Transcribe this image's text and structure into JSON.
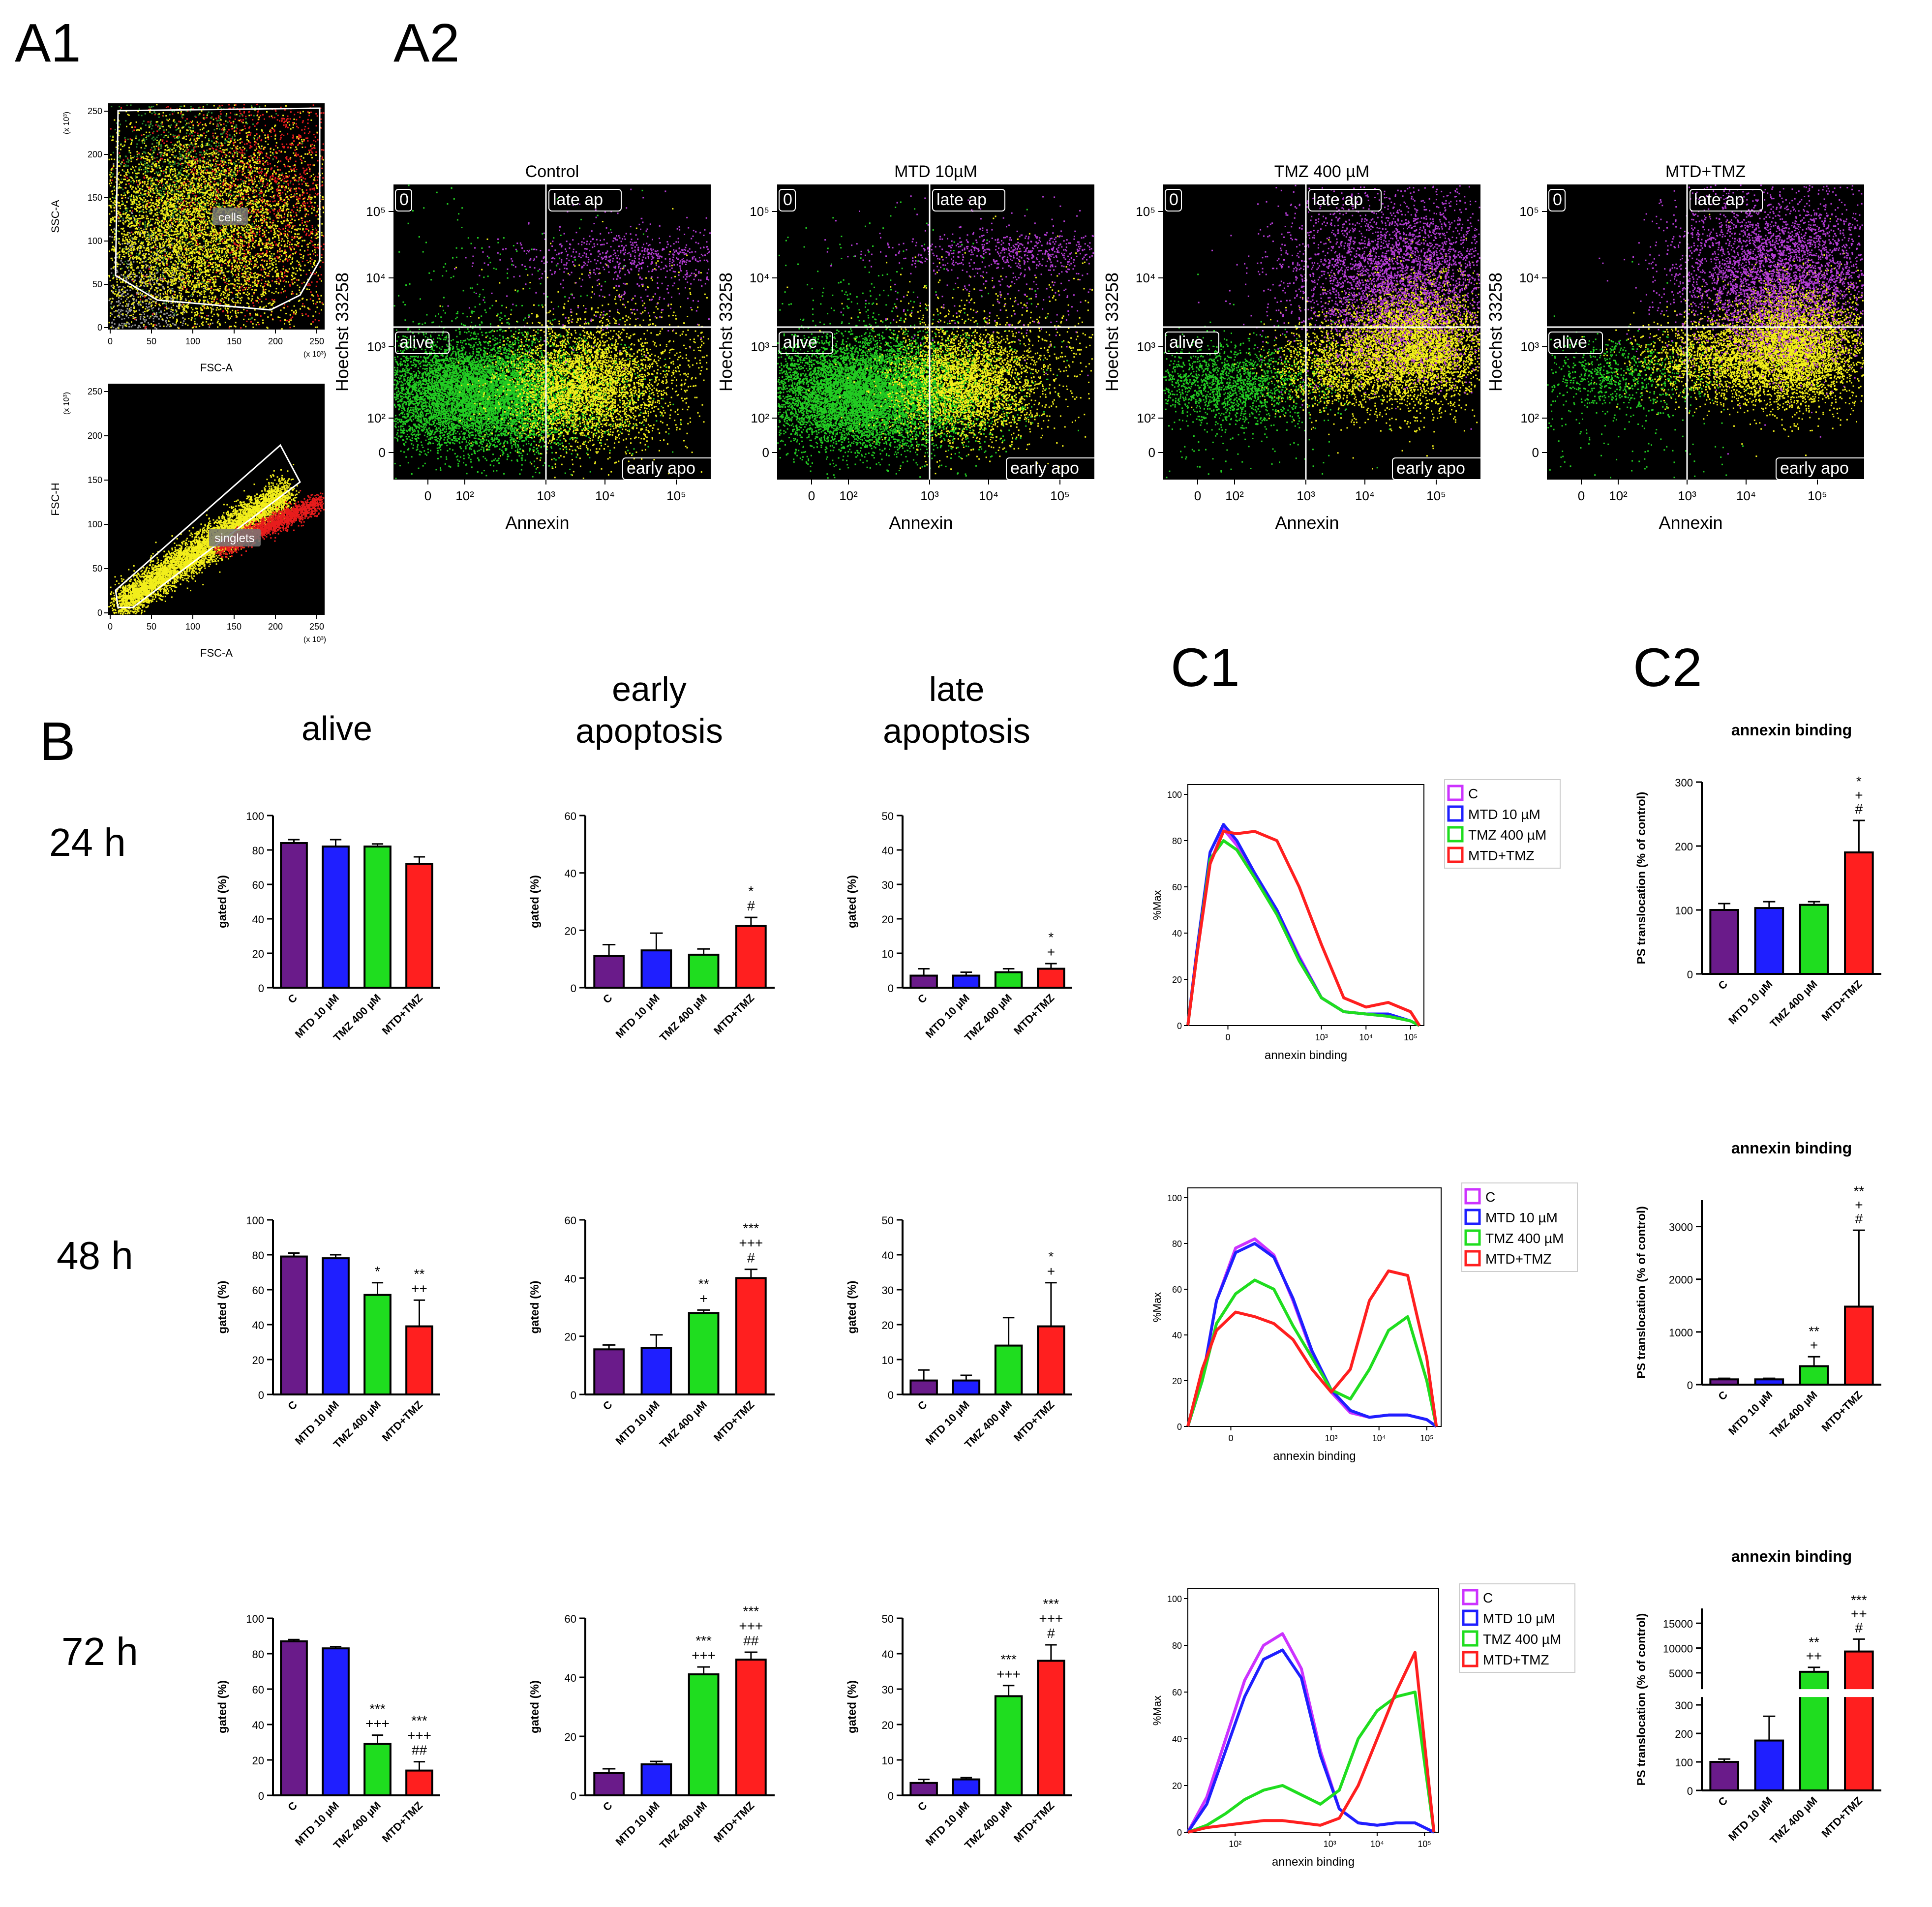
{
  "panel_labels": {
    "A1": "A1",
    "A2": "A2",
    "B": "B",
    "C1": "C1",
    "C2": "C2"
  },
  "row_labels": [
    "24 h",
    "48 h",
    "72 h"
  ],
  "group_labels": [
    "C",
    "MTD 10 µM",
    "TMZ 400 µM",
    "MTD+TMZ"
  ],
  "colors": {
    "C": "#6a1b8a",
    "MTD": "#1f1fff",
    "TMZ": "#1fdd1f",
    "COMBO": "#ff1f1f",
    "plotbg": "#000000",
    "gate": "#ffffff",
    "dot_green": "#22cc22",
    "dot_yellow": "#f2ee1a",
    "dot_purple": "#b53cd6",
    "dot_red": "#e81c1c"
  },
  "A1": {
    "top": {
      "x_label": "FSC-A",
      "y_label": "SSC-A",
      "x_unit": "(x 10³)",
      "y_unit": "(x 10³)",
      "gate_label": "cells",
      "x_ticks": [
        "0",
        "50",
        "100",
        "150",
        "200",
        "250"
      ],
      "y_ticks": [
        "0",
        "50",
        "100",
        "150",
        "200",
        "250"
      ]
    },
    "bottom": {
      "x_label": "FSC-A",
      "y_label": "FSC-H",
      "x_unit": "(x 10³)",
      "y_unit": "(x 10³)",
      "gate_label": "singlets",
      "x_ticks": [
        "0",
        "50",
        "100",
        "150",
        "200",
        "250"
      ],
      "y_ticks": [
        "0",
        "50",
        "100",
        "150",
        "200",
        "250"
      ]
    }
  },
  "A2": {
    "x_label": "Annexin",
    "y_label": "Hoechst 33258",
    "quadrants": {
      "top_left": "0",
      "top_right": "late ap",
      "bottom_left": "alive",
      "bottom_right": "early apo"
    },
    "x_ticks": [
      "0",
      "10²",
      "10³",
      "10⁴",
      "10⁵"
    ],
    "y_ticks": [
      "10⁵",
      "10⁴",
      "10³",
      "10²",
      "0"
    ],
    "plots": [
      {
        "title": "Control"
      },
      {
        "title": "MTD 10µM"
      },
      {
        "title": "TMZ 400 µM"
      },
      {
        "title": "MTD+TMZ"
      }
    ]
  },
  "B": {
    "column_titles": [
      [
        "alive"
      ],
      [
        "early",
        "apoptosis"
      ],
      [
        "late",
        "apoptosis"
      ]
    ],
    "y_label": "gated (%)"
  },
  "C1": {
    "x_label": "annexin binding",
    "y_label": "%Max",
    "y_ticks": [
      "0",
      "20",
      "40",
      "60",
      "80",
      "100"
    ],
    "x_ticks_rows": [
      [
        "0",
        "10³",
        "10⁴",
        "10⁵"
      ],
      [
        "0",
        "10³",
        "10⁴",
        "10⁵"
      ],
      [
        "10²",
        "10³",
        "10⁴",
        "10⁵"
      ]
    ],
    "legend": [
      "C",
      "MTD 10 µM",
      "TMZ 400 µM",
      "MTD+TMZ"
    ]
  },
  "C2": {
    "title": "annexin binding",
    "y_label": "PS translocation (% of control)"
  },
  "chart_data": [
    {
      "id": "B-24h-alive",
      "type": "bar",
      "categories": [
        "C",
        "MTD 10 µM",
        "TMZ 400 µM",
        "MTD+TMZ"
      ],
      "values": [
        84,
        82,
        82,
        72
      ],
      "errors": [
        2,
        4,
        1.5,
        4
      ],
      "ylim": [
        0,
        100
      ],
      "yticks": [
        0,
        20,
        40,
        60,
        80,
        100
      ],
      "ylabel": "gated (%)",
      "annotations": [
        [],
        [],
        [],
        []
      ]
    },
    {
      "id": "B-24h-early",
      "type": "bar",
      "categories": [
        "C",
        "MTD 10 µM",
        "TMZ 400 µM",
        "MTD+TMZ"
      ],
      "values": [
        11,
        13,
        11.5,
        21.5
      ],
      "errors": [
        4,
        6,
        2,
        3
      ],
      "ylim": [
        0,
        60
      ],
      "yticks": [
        0,
        20,
        40,
        60
      ],
      "ylabel": "gated (%)",
      "annotations": [
        [],
        [],
        [],
        [
          "*",
          "#"
        ]
      ]
    },
    {
      "id": "B-24h-late",
      "type": "bar",
      "categories": [
        "C",
        "MTD 10 µM",
        "TMZ 400 µM",
        "MTD+TMZ"
      ],
      "values": [
        3.5,
        3.5,
        4.5,
        5.5
      ],
      "errors": [
        2,
        1,
        1,
        1.5
      ],
      "ylim": [
        0,
        50
      ],
      "yticks": [
        0,
        10,
        20,
        30,
        40,
        50
      ],
      "ylabel": "gated (%)",
      "annotations": [
        [],
        [],
        [],
        [
          "*",
          "+"
        ]
      ]
    },
    {
      "id": "B-48h-alive",
      "type": "bar",
      "categories": [
        "C",
        "MTD 10 µM",
        "TMZ 400 µM",
        "MTD+TMZ"
      ],
      "values": [
        79,
        78,
        57,
        39
      ],
      "errors": [
        2,
        2,
        7,
        15
      ],
      "ylim": [
        0,
        100
      ],
      "yticks": [
        0,
        20,
        40,
        60,
        80,
        100
      ],
      "ylabel": "gated (%)",
      "annotations": [
        [],
        [],
        [
          "*"
        ],
        [
          "**",
          "++"
        ]
      ]
    },
    {
      "id": "B-48h-early",
      "type": "bar",
      "categories": [
        "C",
        "MTD 10 µM",
        "TMZ 400 µM",
        "MTD+TMZ"
      ],
      "values": [
        15.5,
        16,
        28,
        40
      ],
      "errors": [
        1.5,
        4.5,
        1,
        3
      ],
      "ylim": [
        0,
        60
      ],
      "yticks": [
        0,
        20,
        40,
        60
      ],
      "ylabel": "gated (%)",
      "annotations": [
        [],
        [],
        [
          "**",
          "+"
        ],
        [
          "***",
          "+++",
          "#"
        ]
      ]
    },
    {
      "id": "B-48h-late",
      "type": "bar",
      "categories": [
        "C",
        "MTD 10 µM",
        "TMZ 400 µM",
        "MTD+TMZ"
      ],
      "values": [
        4,
        4,
        14,
        19.5
      ],
      "errors": [
        3,
        1.5,
        8,
        12.5
      ],
      "ylim": [
        0,
        50
      ],
      "yticks": [
        0,
        10,
        20,
        30,
        40,
        50
      ],
      "ylabel": "gated (%)",
      "annotations": [
        [],
        [],
        [],
        [
          "*",
          "+"
        ]
      ]
    },
    {
      "id": "B-72h-alive",
      "type": "bar",
      "categories": [
        "C",
        "MTD 10 µM",
        "TMZ 400 µM",
        "MTD+TMZ"
      ],
      "values": [
        87,
        83,
        29,
        14
      ],
      "errors": [
        1,
        1,
        5,
        5
      ],
      "ylim": [
        0,
        100
      ],
      "yticks": [
        0,
        20,
        40,
        60,
        80,
        100
      ],
      "ylabel": "gated (%)",
      "annotations": [
        [],
        [],
        [
          "***",
          "+++"
        ],
        [
          "***",
          "+++",
          "##"
        ]
      ]
    },
    {
      "id": "B-72h-early",
      "type": "bar",
      "categories": [
        "C",
        "MTD 10 µM",
        "TMZ 400 µM",
        "MTD+TMZ"
      ],
      "values": [
        7.5,
        10.5,
        41,
        46
      ],
      "errors": [
        1.5,
        1,
        2.5,
        2.5
      ],
      "ylim": [
        0,
        60
      ],
      "yticks": [
        0,
        20,
        40,
        60
      ],
      "ylabel": "gated (%)",
      "annotations": [
        [],
        [],
        [
          "***",
          "+++"
        ],
        [
          "***",
          "+++",
          "##"
        ]
      ]
    },
    {
      "id": "B-72h-late",
      "type": "bar",
      "categories": [
        "C",
        "MTD 10 µM",
        "TMZ 400 µM",
        "MTD+TMZ"
      ],
      "values": [
        3.5,
        4.5,
        28,
        38
      ],
      "errors": [
        1,
        0.5,
        3,
        4.5
      ],
      "ylim": [
        0,
        50
      ],
      "yticks": [
        0,
        10,
        20,
        30,
        40,
        50
      ],
      "ylabel": "gated (%)",
      "annotations": [
        [],
        [],
        [
          "***",
          "+++"
        ],
        [
          "***",
          "+++",
          "#"
        ]
      ]
    },
    {
      "id": "C2-24h",
      "type": "bar",
      "title": "annexin binding",
      "categories": [
        "C",
        "MTD 10 µM",
        "TMZ 400 µM",
        "MTD+TMZ"
      ],
      "values": [
        100,
        103,
        108,
        190
      ],
      "errors": [
        10,
        10,
        5,
        50
      ],
      "ylim": [
        0,
        300
      ],
      "yticks": [
        0,
        100,
        200,
        300
      ],
      "ylabel": "PS translocation (% of control)",
      "annotations": [
        [],
        [],
        [],
        [
          "*",
          "+",
          "#"
        ]
      ]
    },
    {
      "id": "C2-48h",
      "type": "bar",
      "title": "annexin binding",
      "categories": [
        "C",
        "MTD 10 µM",
        "TMZ 400 µM",
        "MTD+TMZ"
      ],
      "values": [
        100,
        100,
        350,
        1480
      ],
      "errors": [
        20,
        20,
        180,
        1450
      ],
      "ylim": [
        0,
        3500
      ],
      "yticks": [
        0,
        1000,
        2000,
        3000
      ],
      "ylabel": "PS translocation (% of control)",
      "annotations": [
        [],
        [],
        [
          "**",
          "+"
        ],
        [
          "**",
          "+",
          "#"
        ]
      ]
    },
    {
      "id": "C2-72h",
      "type": "bar",
      "title": "annexin binding",
      "categories": [
        "C",
        "MTD 10 µM",
        "TMZ 400 µM",
        "MTD+TMZ"
      ],
      "values": [
        100,
        175,
        5200,
        9300
      ],
      "errors": [
        10,
        85,
        900,
        2500
      ],
      "ylim": [
        0,
        18000
      ],
      "yticks": [
        0,
        100,
        200,
        300,
        5000,
        10000,
        15000
      ],
      "axis_break": [
        300,
        1500
      ],
      "ylabel": "PS translocation (% of control)",
      "annotations": [
        [],
        [],
        [
          "**",
          "++"
        ],
        [
          "***",
          "++",
          "#"
        ]
      ]
    },
    {
      "id": "C1-24h",
      "type": "line",
      "x_scale": "log",
      "ylabel": "%Max",
      "xlabel": "annexin binding",
      "ylim": [
        0,
        100
      ],
      "series": [
        {
          "name": "C",
          "x": [
            0,
            0.2,
            0.5,
            0.8,
            1.1,
            1.5,
            2.0,
            2.5,
            3.0,
            3.5,
            4.0,
            4.5,
            5.0,
            5.2
          ],
          "y": [
            0,
            30,
            70,
            85,
            78,
            65,
            50,
            30,
            12,
            6,
            5,
            4,
            2,
            0
          ]
        },
        {
          "name": "MTD 10 µM",
          "x": [
            0,
            0.2,
            0.5,
            0.8,
            1.1,
            1.5,
            2.0,
            2.5,
            3.0,
            3.5,
            4.0,
            4.5,
            5.0,
            5.2
          ],
          "y": [
            0,
            32,
            75,
            87,
            80,
            66,
            50,
            29,
            12,
            6,
            5,
            5,
            2,
            0
          ]
        },
        {
          "name": "TMZ 400 µM",
          "x": [
            0,
            0.2,
            0.5,
            0.8,
            1.1,
            1.5,
            2.0,
            2.5,
            3.0,
            3.5,
            4.0,
            4.5,
            5.0,
            5.2
          ],
          "y": [
            0,
            30,
            72,
            80,
            76,
            64,
            48,
            28,
            12,
            6,
            5,
            4,
            2,
            0
          ]
        },
        {
          "name": "MTD+TMZ",
          "x": [
            0,
            0.2,
            0.5,
            0.8,
            1.1,
            1.5,
            2.0,
            2.5,
            3.0,
            3.5,
            4.0,
            4.5,
            5.0,
            5.2
          ],
          "y": [
            0,
            30,
            70,
            84,
            83,
            84,
            80,
            60,
            35,
            12,
            8,
            10,
            6,
            0
          ]
        }
      ]
    },
    {
      "id": "C1-48h",
      "type": "line",
      "x_scale": "log",
      "ylabel": "%Max",
      "xlabel": "annexin binding",
      "ylim": [
        0,
        100
      ],
      "series": [
        {
          "name": "C",
          "x": [
            0,
            0.3,
            0.6,
            1.0,
            1.4,
            1.8,
            2.2,
            2.6,
            3.0,
            3.4,
            3.8,
            4.2,
            4.6,
            5.0,
            5.2
          ],
          "y": [
            0,
            20,
            55,
            78,
            82,
            75,
            55,
            32,
            15,
            6,
            4,
            5,
            5,
            3,
            0
          ]
        },
        {
          "name": "MTD 10 µM",
          "x": [
            0,
            0.3,
            0.6,
            1.0,
            1.4,
            1.8,
            2.2,
            2.6,
            3.0,
            3.4,
            3.8,
            4.2,
            4.6,
            5.0,
            5.2
          ],
          "y": [
            0,
            20,
            55,
            76,
            80,
            74,
            56,
            33,
            16,
            7,
            4,
            5,
            5,
            3,
            0
          ]
        },
        {
          "name": "TMZ 400 µM",
          "x": [
            0,
            0.3,
            0.6,
            1.0,
            1.4,
            1.8,
            2.2,
            2.6,
            3.0,
            3.4,
            3.8,
            4.2,
            4.6,
            5.0,
            5.2
          ],
          "y": [
            0,
            20,
            45,
            58,
            64,
            60,
            44,
            30,
            16,
            12,
            25,
            42,
            48,
            20,
            0
          ]
        },
        {
          "name": "MTD+TMZ",
          "x": [
            0,
            0.3,
            0.6,
            1.0,
            1.4,
            1.8,
            2.2,
            2.6,
            3.0,
            3.4,
            3.8,
            4.2,
            4.6,
            5.0,
            5.2
          ],
          "y": [
            0,
            25,
            42,
            50,
            48,
            45,
            38,
            25,
            15,
            25,
            55,
            68,
            66,
            30,
            0
          ]
        }
      ]
    },
    {
      "id": "C1-72h",
      "type": "line",
      "x_scale": "log",
      "ylabel": "%Max",
      "xlabel": "annexin binding",
      "ylim": [
        0,
        100
      ],
      "series": [
        {
          "name": "C",
          "x": [
            0,
            0.4,
            0.8,
            1.2,
            1.6,
            2.0,
            2.4,
            2.8,
            3.2,
            3.6,
            4.0,
            4.4,
            4.8,
            5.2
          ],
          "y": [
            0,
            15,
            40,
            65,
            80,
            85,
            70,
            35,
            10,
            4,
            3,
            4,
            4,
            0
          ]
        },
        {
          "name": "MTD 10 µM",
          "x": [
            0,
            0.4,
            0.8,
            1.2,
            1.6,
            2.0,
            2.4,
            2.8,
            3.2,
            3.6,
            4.0,
            4.4,
            4.8,
            5.2
          ],
          "y": [
            0,
            12,
            35,
            58,
            74,
            78,
            66,
            33,
            10,
            4,
            3,
            4,
            4,
            0
          ]
        },
        {
          "name": "TMZ 400 µM",
          "x": [
            0,
            0.4,
            0.8,
            1.2,
            1.6,
            2.0,
            2.4,
            2.8,
            3.2,
            3.6,
            4.0,
            4.4,
            4.8,
            5.2
          ],
          "y": [
            0,
            3,
            8,
            14,
            18,
            20,
            16,
            12,
            18,
            40,
            52,
            58,
            60,
            0
          ]
        },
        {
          "name": "MTD+TMZ",
          "x": [
            0,
            0.4,
            0.8,
            1.2,
            1.6,
            2.0,
            2.4,
            2.8,
            3.2,
            3.6,
            4.0,
            4.4,
            4.8,
            5.2
          ],
          "y": [
            0,
            2,
            3,
            4,
            5,
            5,
            4,
            3,
            6,
            20,
            40,
            60,
            77,
            0
          ]
        }
      ]
    }
  ]
}
